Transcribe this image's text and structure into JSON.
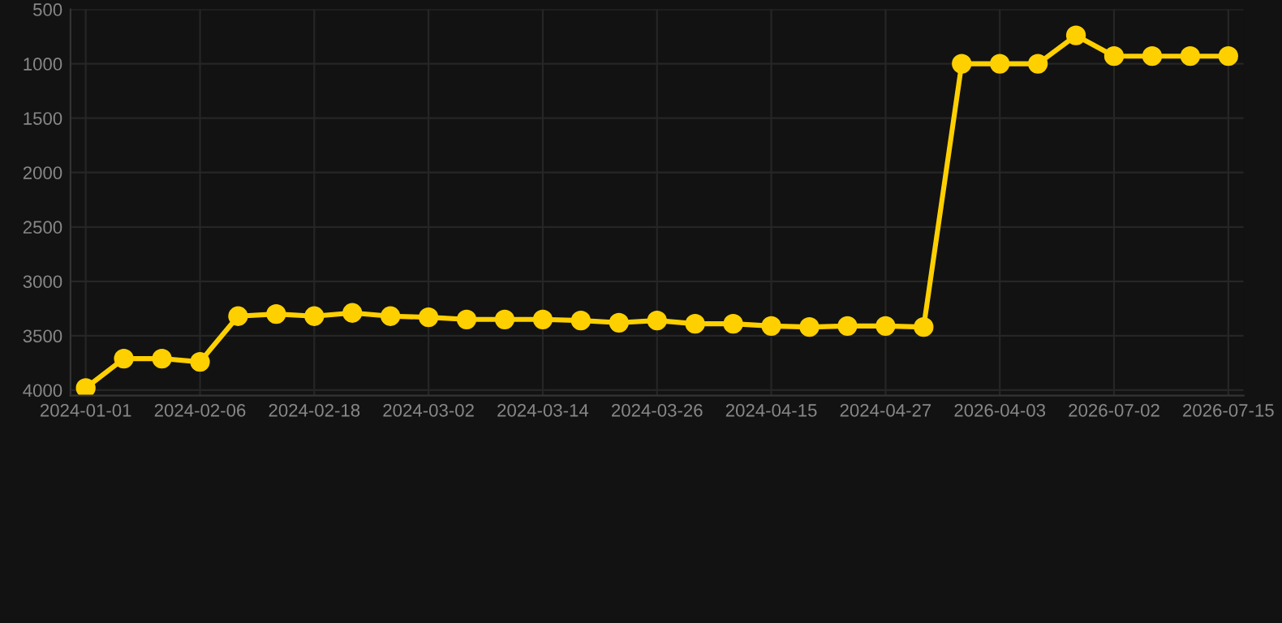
{
  "chart_data": {
    "type": "line",
    "categories": [
      "2024-01-01",
      null,
      null,
      "2024-02-06",
      null,
      null,
      "2024-02-18",
      null,
      null,
      "2024-03-02",
      null,
      null,
      "2024-03-14",
      null,
      null,
      "2024-03-26",
      null,
      null,
      "2024-04-15",
      null,
      null,
      "2024-04-27",
      null,
      null,
      "2026-04-03",
      null,
      null,
      "2026-07-02",
      null,
      null,
      "2026-07-15"
    ],
    "series": [
      {
        "color": "#ffd000",
        "values": [
          3980,
          3710,
          3710,
          3740,
          3320,
          3300,
          3320,
          3290,
          3320,
          3330,
          3350,
          3350,
          3350,
          3360,
          3380,
          3360,
          3390,
          3390,
          3410,
          3420,
          3410,
          3410,
          3420,
          1000,
          1000,
          1000,
          740,
          930,
          930,
          930,
          930
        ]
      }
    ],
    "ylim": [
      4050,
      500
    ],
    "yticks": [
      500,
      1000,
      1500,
      2000,
      2500,
      3000,
      3500,
      4000
    ],
    "grid": true,
    "marker": "circle",
    "line_style": "solid"
  }
}
